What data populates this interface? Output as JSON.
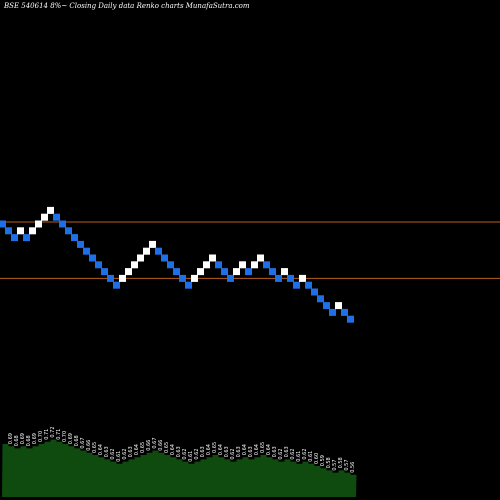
{
  "chart_data": {
    "type": "renko",
    "title": "BSE 540614  8%~  Closing Daily data  Renko  charts MunafaSutra.com",
    "ylim": [
      0.27,
      1.0
    ],
    "reference_lines": [
      0.7,
      0.62
    ],
    "colors": {
      "up": "#ffffff",
      "down": "#1e6fe8",
      "line": "#b8601c",
      "volume": "#0f4a0f",
      "background": "#000000"
    },
    "bricks": [
      {
        "x": 0,
        "y": 0.7,
        "dir": "down"
      },
      {
        "x": 1,
        "y": 0.69,
        "dir": "down"
      },
      {
        "x": 2,
        "y": 0.68,
        "dir": "down"
      },
      {
        "x": 3,
        "y": 0.69,
        "dir": "up"
      },
      {
        "x": 4,
        "y": 0.68,
        "dir": "down"
      },
      {
        "x": 5,
        "y": 0.69,
        "dir": "up"
      },
      {
        "x": 6,
        "y": 0.7,
        "dir": "up"
      },
      {
        "x": 7,
        "y": 0.71,
        "dir": "up"
      },
      {
        "x": 8,
        "y": 0.72,
        "dir": "up"
      },
      {
        "x": 9,
        "y": 0.71,
        "dir": "down"
      },
      {
        "x": 10,
        "y": 0.7,
        "dir": "down"
      },
      {
        "x": 11,
        "y": 0.69,
        "dir": "down"
      },
      {
        "x": 12,
        "y": 0.68,
        "dir": "down"
      },
      {
        "x": 13,
        "y": 0.67,
        "dir": "down"
      },
      {
        "x": 14,
        "y": 0.66,
        "dir": "down"
      },
      {
        "x": 15,
        "y": 0.65,
        "dir": "down"
      },
      {
        "x": 16,
        "y": 0.64,
        "dir": "down"
      },
      {
        "x": 17,
        "y": 0.63,
        "dir": "down"
      },
      {
        "x": 18,
        "y": 0.62,
        "dir": "down"
      },
      {
        "x": 19,
        "y": 0.61,
        "dir": "down"
      },
      {
        "x": 20,
        "y": 0.62,
        "dir": "up"
      },
      {
        "x": 21,
        "y": 0.63,
        "dir": "up"
      },
      {
        "x": 22,
        "y": 0.64,
        "dir": "up"
      },
      {
        "x": 23,
        "y": 0.65,
        "dir": "up"
      },
      {
        "x": 24,
        "y": 0.66,
        "dir": "up"
      },
      {
        "x": 25,
        "y": 0.67,
        "dir": "up"
      },
      {
        "x": 26,
        "y": 0.66,
        "dir": "down"
      },
      {
        "x": 27,
        "y": 0.65,
        "dir": "down"
      },
      {
        "x": 28,
        "y": 0.64,
        "dir": "down"
      },
      {
        "x": 29,
        "y": 0.63,
        "dir": "down"
      },
      {
        "x": 30,
        "y": 0.62,
        "dir": "down"
      },
      {
        "x": 31,
        "y": 0.61,
        "dir": "down"
      },
      {
        "x": 32,
        "y": 0.62,
        "dir": "up"
      },
      {
        "x": 33,
        "y": 0.63,
        "dir": "up"
      },
      {
        "x": 34,
        "y": 0.64,
        "dir": "up"
      },
      {
        "x": 35,
        "y": 0.65,
        "dir": "up"
      },
      {
        "x": 36,
        "y": 0.64,
        "dir": "down"
      },
      {
        "x": 37,
        "y": 0.63,
        "dir": "down"
      },
      {
        "x": 38,
        "y": 0.62,
        "dir": "down"
      },
      {
        "x": 39,
        "y": 0.63,
        "dir": "up"
      },
      {
        "x": 40,
        "y": 0.64,
        "dir": "up"
      },
      {
        "x": 41,
        "y": 0.63,
        "dir": "down"
      },
      {
        "x": 42,
        "y": 0.64,
        "dir": "up"
      },
      {
        "x": 43,
        "y": 0.65,
        "dir": "up"
      },
      {
        "x": 44,
        "y": 0.64,
        "dir": "down"
      },
      {
        "x": 45,
        "y": 0.63,
        "dir": "down"
      },
      {
        "x": 46,
        "y": 0.62,
        "dir": "down"
      },
      {
        "x": 47,
        "y": 0.63,
        "dir": "up"
      },
      {
        "x": 48,
        "y": 0.62,
        "dir": "down"
      },
      {
        "x": 49,
        "y": 0.61,
        "dir": "down"
      },
      {
        "x": 50,
        "y": 0.62,
        "dir": "up"
      },
      {
        "x": 51,
        "y": 0.61,
        "dir": "down"
      },
      {
        "x": 52,
        "y": 0.6,
        "dir": "down"
      },
      {
        "x": 53,
        "y": 0.59,
        "dir": "down"
      },
      {
        "x": 54,
        "y": 0.58,
        "dir": "down"
      },
      {
        "x": 55,
        "y": 0.57,
        "dir": "down"
      },
      {
        "x": 56,
        "y": 0.58,
        "dir": "up"
      },
      {
        "x": 57,
        "y": 0.57,
        "dir": "down"
      },
      {
        "x": 58,
        "y": 0.56,
        "dir": "down"
      }
    ],
    "volume_labels": [
      "0.69",
      "0.68",
      "0.69",
      "0.68",
      "0.69",
      "0.70",
      "0.71",
      "0.72",
      "0.71",
      "0.70",
      "0.69",
      "0.68",
      "0.67",
      "0.66",
      "0.65",
      "0.64",
      "0.63",
      "0.62",
      "0.61",
      "0.62",
      "0.63",
      "0.64",
      "0.65",
      "0.66",
      "0.67",
      "0.66",
      "0.65",
      "0.64",
      "0.63",
      "0.62",
      "0.61",
      "0.62",
      "0.63",
      "0.64",
      "0.65",
      "0.64",
      "0.63",
      "0.62",
      "0.63",
      "0.64",
      "0.63",
      "0.64",
      "0.65",
      "0.64",
      "0.63",
      "0.62",
      "0.63",
      "0.62",
      "0.61",
      "0.62",
      "0.61",
      "0.60",
      "0.59",
      "0.58",
      "0.57",
      "0.58",
      "0.57",
      "0.56"
    ]
  }
}
